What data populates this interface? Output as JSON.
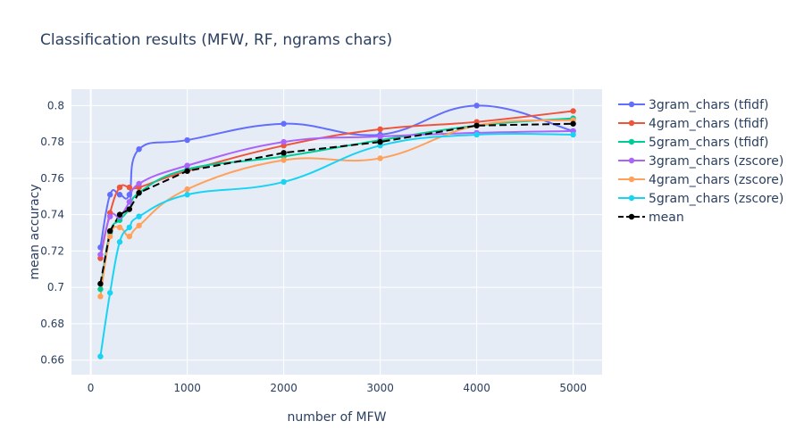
{
  "chart_data": {
    "type": "line",
    "title": "Classification results (MFW, RF, ngrams chars)",
    "xlabel": "number of MFW",
    "ylabel": "mean accuracy",
    "xlim": [
      -200,
      5300
    ],
    "ylim": [
      0.652,
      0.809
    ],
    "xticks": [
      0,
      1000,
      2000,
      3000,
      4000,
      5000
    ],
    "yticks": [
      0.66,
      0.68,
      0.7,
      0.72,
      0.74,
      0.76,
      0.78,
      0.8
    ],
    "grid": true,
    "legend_position": "right",
    "x": [
      100,
      200,
      300,
      400,
      500,
      1000,
      2000,
      3000,
      4000,
      5000
    ],
    "series": [
      {
        "name": "3gram_chars (tfidf)",
        "color": "#636efa",
        "dash": false,
        "values": [
          0.722,
          0.751,
          0.751,
          0.751,
          0.776,
          0.781,
          0.79,
          0.784,
          0.8,
          0.786
        ]
      },
      {
        "name": "4gram_chars (tfidf)",
        "color": "#ef553b",
        "dash": false,
        "values": [
          0.716,
          0.741,
          0.755,
          0.755,
          0.755,
          0.764,
          0.778,
          0.787,
          0.791,
          0.797
        ]
      },
      {
        "name": "5gram_chars (tfidf)",
        "color": "#00cc96",
        "dash": false,
        "values": [
          0.699,
          0.73,
          0.737,
          0.743,
          0.752,
          0.765,
          0.772,
          0.781,
          0.789,
          0.793
        ]
      },
      {
        "name": "3gram_chars (zscore)",
        "color": "#ab63fa",
        "dash": false,
        "values": [
          0.718,
          0.739,
          0.739,
          0.747,
          0.757,
          0.767,
          0.78,
          0.783,
          0.785,
          0.786
        ]
      },
      {
        "name": "4gram_chars (zscore)",
        "color": "#ffa15a",
        "dash": false,
        "values": [
          0.695,
          0.728,
          0.733,
          0.728,
          0.734,
          0.754,
          0.77,
          0.771,
          0.789,
          0.792
        ]
      },
      {
        "name": "5gram_chars (zscore)",
        "color": "#19d3f3",
        "dash": false,
        "values": [
          0.662,
          0.697,
          0.725,
          0.733,
          0.739,
          0.751,
          0.758,
          0.778,
          0.784,
          0.784
        ]
      },
      {
        "name": "mean",
        "color": "#000000",
        "dash": true,
        "values": [
          0.702,
          0.731,
          0.74,
          0.743,
          0.752,
          0.764,
          0.774,
          0.78,
          0.789,
          0.79
        ]
      }
    ]
  }
}
